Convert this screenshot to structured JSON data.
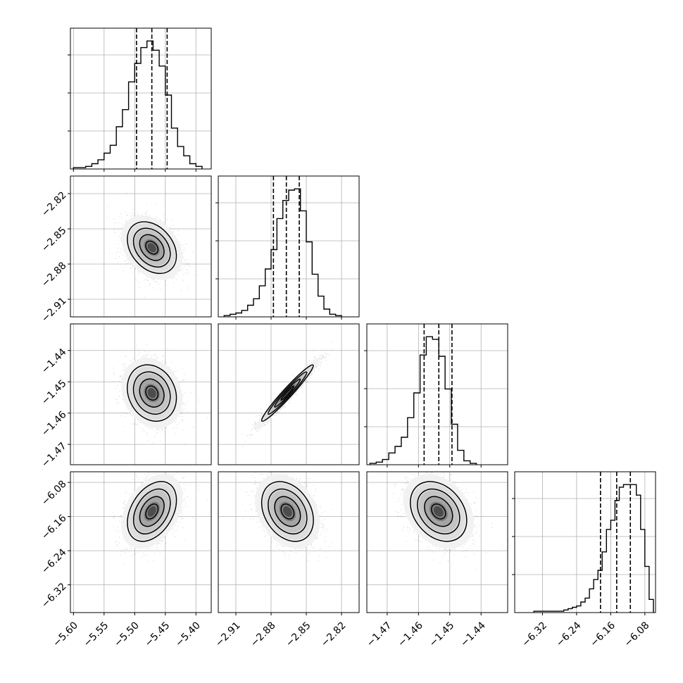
{
  "chart_data": {
    "type": "corner",
    "title": "",
    "grid": true,
    "parameters": [
      {
        "name": "",
        "range": [
          -5.605,
          -5.375
        ],
        "ticks": [
          "-5.60",
          "-5.55",
          "-5.50",
          "-5.45",
          "-5.40"
        ],
        "tick_values": [
          -5.6,
          -5.55,
          -5.5,
          -5.45,
          -5.4
        ],
        "quantiles": [
          -5.497,
          -5.472,
          -5.447
        ],
        "mean": -5.472,
        "sd": 0.02,
        "hist_edges": [
          -5.6,
          -5.59,
          -5.58,
          -5.57,
          -5.56,
          -5.55,
          -5.54,
          -5.53,
          -5.52,
          -5.51,
          -5.5,
          -5.49,
          -5.48,
          -5.47,
          -5.46,
          -5.45,
          -5.44,
          -5.43,
          -5.42,
          -5.41,
          -5.4,
          -5.39
        ],
        "hist_counts": [
          0.01,
          0.01,
          0.02,
          0.04,
          0.07,
          0.12,
          0.18,
          0.32,
          0.45,
          0.66,
          0.8,
          0.92,
          0.97,
          0.9,
          0.78,
          0.56,
          0.31,
          0.17,
          0.1,
          0.04,
          0.02
        ]
      },
      {
        "name": "",
        "range": [
          -2.925,
          -2.805
        ],
        "ticks": [
          "-2.91",
          "-2.88",
          "-2.85",
          "-2.82"
        ],
        "tick_values": [
          -2.91,
          -2.88,
          -2.85,
          -2.82
        ],
        "quantiles": [
          -2.878,
          -2.867,
          -2.856
        ],
        "mean": -2.866,
        "sd": 0.011,
        "hist_edges": [
          -2.92,
          -2.915,
          -2.91,
          -2.905,
          -2.9,
          -2.895,
          -2.89,
          -2.885,
          -2.88,
          -2.875,
          -2.87,
          -2.865,
          -2.86,
          -2.855,
          -2.85,
          -2.845,
          -2.84,
          -2.835,
          -2.83,
          -2.825,
          -2.82
        ],
        "hist_counts": [
          0.01,
          0.02,
          0.03,
          0.05,
          0.09,
          0.14,
          0.24,
          0.37,
          0.52,
          0.76,
          0.9,
          0.98,
          0.99,
          0.82,
          0.58,
          0.33,
          0.16,
          0.06,
          0.02,
          0.01
        ]
      },
      {
        "name": "",
        "range": [
          -1.4765,
          -1.4315
        ],
        "ticks": [
          "-1.47",
          "-1.46",
          "-1.45",
          "-1.44"
        ],
        "tick_values": [
          -1.47,
          -1.46,
          -1.45,
          -1.44
        ],
        "quantiles": [
          -1.4582,
          -1.4535,
          -1.4493
        ],
        "mean": -1.4536,
        "sd": 0.0045,
        "hist_edges": [
          -1.4755,
          -1.4735,
          -1.4715,
          -1.4695,
          -1.4675,
          -1.4655,
          -1.4635,
          -1.4615,
          -1.4595,
          -1.4575,
          -1.4555,
          -1.4535,
          -1.4515,
          -1.4495,
          -1.4475,
          -1.4455,
          -1.4435,
          -1.4415
        ],
        "hist_counts": [
          0.01,
          0.02,
          0.04,
          0.09,
          0.14,
          0.21,
          0.36,
          0.55,
          0.84,
          0.98,
          0.96,
          0.83,
          0.58,
          0.31,
          0.11,
          0.03,
          0.01
        ]
      },
      {
        "name": "",
        "range": [
          -6.385,
          -6.055
        ],
        "ticks": [
          "-6.32",
          "-6.24",
          "-6.16",
          "-6.08"
        ],
        "tick_values": [
          -6.32,
          -6.24,
          -6.16,
          -6.08
        ],
        "quantiles": [
          -6.184,
          -6.146,
          -6.114
        ],
        "mean": -6.148,
        "sd": 0.035,
        "hist_edges": [
          -6.34,
          -6.33,
          -6.32,
          -6.31,
          -6.3,
          -6.29,
          -6.28,
          -6.27,
          -6.26,
          -6.25,
          -6.24,
          -6.23,
          -6.22,
          -6.21,
          -6.2,
          -6.19,
          -6.18,
          -6.17,
          -6.16,
          -6.15,
          -6.14,
          -6.13,
          -6.12,
          -6.11,
          -6.1,
          -6.09,
          -6.08,
          -6.07,
          -6.06
        ],
        "hist_counts": [
          0.01,
          0.01,
          0.01,
          0.01,
          0.01,
          0.01,
          0.01,
          0.02,
          0.03,
          0.04,
          0.05,
          0.08,
          0.11,
          0.18,
          0.25,
          0.32,
          0.46,
          0.63,
          0.7,
          0.85,
          0.95,
          0.97,
          0.97,
          0.97,
          0.89,
          0.63,
          0.35,
          0.1
        ]
      }
    ],
    "correlations": [
      {
        "pair": [
          1,
          0
        ],
        "rho": -0.32
      },
      {
        "pair": [
          2,
          0
        ],
        "rho": -0.18
      },
      {
        "pair": [
          2,
          1
        ],
        "rho": 0.97
      },
      {
        "pair": [
          3,
          0
        ],
        "rho": 0.38
      },
      {
        "pair": [
          3,
          1
        ],
        "rho": -0.3
      },
      {
        "pair": [
          3,
          2
        ],
        "rho": -0.3
      }
    ],
    "contour_levels": [
      0.118,
      0.393,
      0.675,
      0.865
    ]
  }
}
